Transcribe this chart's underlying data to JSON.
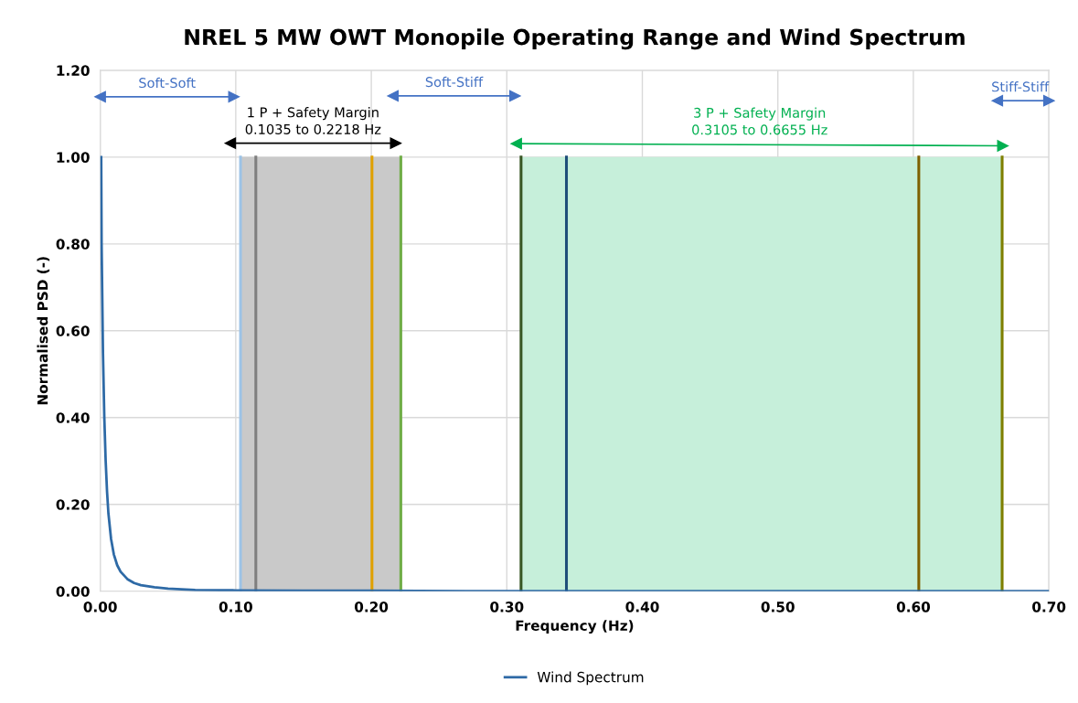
{
  "chart_data": {
    "type": "line",
    "title": "NREL 5 MW OWT Monopile Operating Range and Wind Spectrum",
    "xlabel": "Frequency (Hz)",
    "ylabel": "Normalised PSD (-)",
    "xlim": [
      0,
      0.7
    ],
    "xticks": [
      {
        "value": 0,
        "label": "0.00"
      },
      {
        "value": 0.1,
        "label": "0.10"
      },
      {
        "value": 0.2,
        "label": "0.20"
      },
      {
        "value": 0.3,
        "label": "0.30"
      },
      {
        "value": 0.4,
        "label": "0.40"
      },
      {
        "value": 0.5,
        "label": "0.50"
      },
      {
        "value": 0.6,
        "label": "0.60"
      },
      {
        "value": 0.7,
        "label": "0.70"
      }
    ],
    "ylim": [
      0,
      1.2
    ],
    "yticks": [
      {
        "value": 0,
        "label": "0.00"
      },
      {
        "value": 0.2,
        "label": "0.20"
      },
      {
        "value": 0.4,
        "label": "0.40"
      },
      {
        "value": 0.6,
        "label": "0.60"
      },
      {
        "value": 0.8,
        "label": "0.80"
      },
      {
        "value": 1.0,
        "label": "1.00"
      },
      {
        "value": 1.2,
        "label": "1.20"
      }
    ],
    "grid": true,
    "legend": "bottom",
    "marker": "none",
    "line_style": "solid",
    "series": [
      {
        "type": "area",
        "color": "#c9c9c9",
        "x": [
          0.1035,
          0.2218
        ],
        "values": [
          1.0,
          1.0
        ]
      },
      {
        "type": "area",
        "color": "#c6efda",
        "x": [
          0.3105,
          0.6655
        ],
        "values": [
          1.0,
          1.0
        ]
      },
      {
        "type": "line",
        "color": "#9dc3e6",
        "x": [
          0.1035,
          0.1035
        ],
        "values": [
          0,
          1.0
        ]
      },
      {
        "type": "line",
        "color": "#7f7f7f",
        "x": [
          0.1148,
          0.1148
        ],
        "values": [
          0,
          1.0
        ]
      },
      {
        "type": "line",
        "color": "#e0a000",
        "x": [
          0.2005,
          0.2005
        ],
        "values": [
          0,
          1.0
        ]
      },
      {
        "type": "line",
        "color": "#70ad47",
        "x": [
          0.2218,
          0.2218
        ],
        "values": [
          0,
          1.0
        ]
      },
      {
        "type": "line",
        "color": "#375623",
        "x": [
          0.3105,
          0.3105
        ],
        "values": [
          0,
          1.0
        ]
      },
      {
        "type": "line",
        "color": "#1f4e79",
        "x": [
          0.344,
          0.344
        ],
        "values": [
          0,
          1.0
        ]
      },
      {
        "type": "line",
        "color": "#7f6000",
        "x": [
          0.604,
          0.604
        ],
        "values": [
          0,
          1.0
        ]
      },
      {
        "type": "line",
        "color": "#7f7f00",
        "x": [
          0.6655,
          0.6655
        ],
        "values": [
          0,
          1.0
        ]
      },
      {
        "type": "line",
        "color": "#4472c4",
        "marker": "triangle",
        "x": [
          0,
          0.0986
        ],
        "values": [
          1.139,
          1.139
        ]
      },
      {
        "type": "line",
        "color": "#000000",
        "marker": "triangle",
        "x": [
          0.096,
          0.218
        ],
        "values": [
          1.032,
          1.032
        ]
      },
      {
        "type": "line",
        "color": "#4472c4",
        "marker": "triangle",
        "x": [
          0.216,
          0.306
        ],
        "values": [
          1.141,
          1.141
        ]
      },
      {
        "type": "line",
        "color": "#00b050",
        "marker": "triangle",
        "x": [
          0.307,
          0.666
        ],
        "values": [
          1.031,
          1.026
        ]
      },
      {
        "type": "line",
        "color": "#4472c4",
        "marker": "triangle",
        "x": [
          0.662,
          0.7
        ],
        "values": [
          1.13,
          1.13
        ]
      },
      {
        "name": "Wind Spectrum",
        "color": "#2e6aa6",
        "x": [
          0.0007,
          0.001,
          0.002,
          0.003,
          0.004,
          0.005,
          0.006,
          0.008,
          0.01,
          0.0125,
          0.015,
          0.02,
          0.025,
          0.03,
          0.04,
          0.05,
          0.07,
          0.1,
          0.15,
          0.2,
          0.3,
          0.5,
          0.7
        ],
        "values": [
          1.0,
          0.8,
          0.55,
          0.4,
          0.3,
          0.23,
          0.18,
          0.12,
          0.085,
          0.06,
          0.045,
          0.028,
          0.019,
          0.014,
          0.009,
          0.006,
          0.003,
          0.002,
          0.001,
          0.001,
          0,
          0,
          0
        ]
      }
    ],
    "annotations": [
      "Soft-Soft",
      "1 P + Safety Margin\n0.1035 to 0.2218 Hz",
      "Soft-Stiff",
      "3 P + Safety Margin\n0.3105 to 0.6655 Hz",
      "Stiff-Stiff"
    ]
  }
}
